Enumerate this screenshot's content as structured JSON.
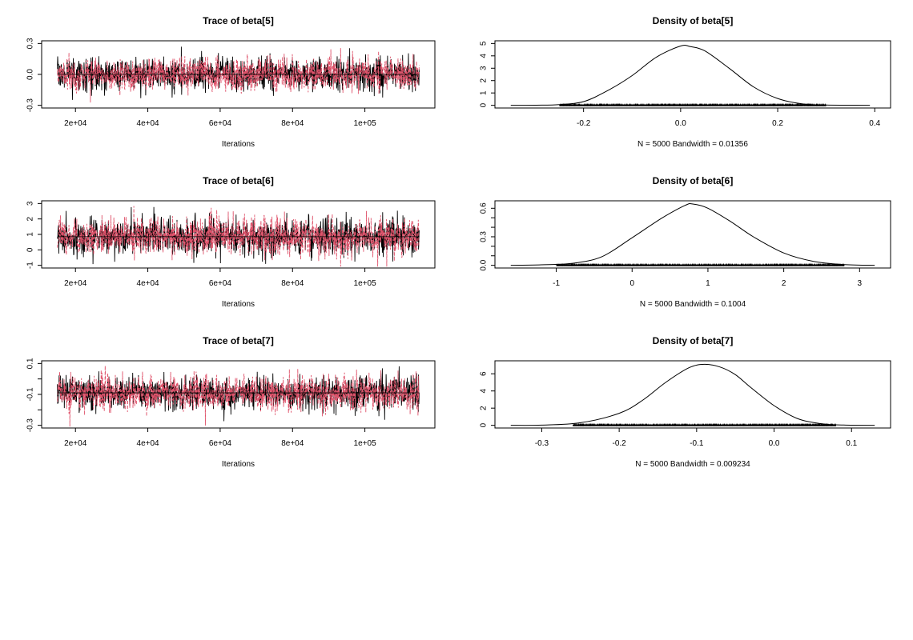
{
  "chart_data": [
    {
      "type": "line",
      "title": "Trace of beta[5]",
      "xlabel": "Iterations",
      "ylabel": "",
      "xlim": [
        15000,
        115000
      ],
      "ylim": [
        -0.3,
        0.3
      ],
      "x_ticks": [
        20000,
        40000,
        60000,
        80000,
        100000
      ],
      "x_tick_labels": [
        "2e+04",
        "4e+04",
        "6e+04",
        "8e+04",
        "1e+05"
      ],
      "y_ticks": [
        -0.3,
        0.0,
        0.3
      ],
      "y_tick_labels": [
        "-0.3",
        "0.0",
        "0.3"
      ],
      "series": [
        {
          "color": "#000000",
          "mean": 0.0,
          "sd": 0.08
        },
        {
          "color": "#DF536B",
          "mean": 0.0,
          "sd": 0.08
        }
      ],
      "n_iterations": 5000,
      "hline": 0.0
    },
    {
      "type": "line",
      "title": "Density of beta[5]",
      "xlabel": "N = 5000   Bandwidth = 0.01356",
      "ylabel": "",
      "xlim": [
        -0.35,
        0.4
      ],
      "ylim": [
        0,
        5
      ],
      "x_ticks": [
        -0.2,
        0.0,
        0.2,
        0.4
      ],
      "x_tick_labels": [
        "-0.2",
        "0.0",
        "0.2",
        "0.4"
      ],
      "y_ticks": [
        0,
        1,
        2,
        3,
        4,
        5
      ],
      "y_tick_labels": [
        "0",
        "1",
        "2",
        "3",
        "4",
        "5"
      ],
      "x": [
        -0.35,
        -0.3,
        -0.25,
        -0.2,
        -0.15,
        -0.1,
        -0.05,
        0.0,
        0.02,
        0.05,
        0.1,
        0.15,
        0.2,
        0.25,
        0.3,
        0.35,
        0.39
      ],
      "y": [
        0.0,
        0.01,
        0.06,
        0.3,
        1.2,
        2.4,
        3.9,
        4.8,
        4.75,
        4.4,
        3.0,
        1.5,
        0.55,
        0.12,
        0.02,
        0.01,
        0.0
      ],
      "rug_range": [
        -0.25,
        0.3
      ]
    },
    {
      "type": "line",
      "title": "Trace of beta[6]",
      "xlabel": "Iterations",
      "ylabel": "",
      "xlim": [
        15000,
        115000
      ],
      "ylim": [
        -1,
        3
      ],
      "x_ticks": [
        20000,
        40000,
        60000,
        80000,
        100000
      ],
      "x_tick_labels": [
        "2e+04",
        "4e+04",
        "6e+04",
        "8e+04",
        "1e+05"
      ],
      "y_ticks": [
        -1,
        0,
        1,
        2,
        3
      ],
      "y_tick_labels": [
        "-1",
        "0",
        "1",
        "2",
        "3"
      ],
      "series": [
        {
          "color": "#000000",
          "mean": 0.85,
          "sd": 0.6
        },
        {
          "color": "#DF536B",
          "mean": 0.85,
          "sd": 0.6
        }
      ],
      "n_iterations": 5000,
      "hline": 0.85
    },
    {
      "type": "line",
      "title": "Density of beta[6]",
      "xlabel": "N = 5000   Bandwidth = 0.1004",
      "ylabel": "",
      "xlim": [
        -1.6,
        3.2
      ],
      "ylim": [
        0,
        0.65
      ],
      "x_ticks": [
        -1,
        0,
        1,
        2,
        3
      ],
      "x_tick_labels": [
        "-1",
        "0",
        "1",
        "2",
        "3"
      ],
      "y_ticks": [
        0.0,
        0.1,
        0.2,
        0.3,
        0.4,
        0.5,
        0.6
      ],
      "y_tick_labels": [
        "0.0",
        "",
        "",
        "0.3",
        "",
        "",
        "0.6"
      ],
      "x": [
        -1.6,
        -1.2,
        -0.8,
        -0.4,
        0.0,
        0.4,
        0.7,
        0.8,
        1.0,
        1.3,
        1.6,
        2.0,
        2.4,
        2.8,
        3.2
      ],
      "y": [
        0.0,
        0.005,
        0.02,
        0.09,
        0.29,
        0.5,
        0.63,
        0.645,
        0.6,
        0.46,
        0.3,
        0.13,
        0.04,
        0.008,
        0.0
      ],
      "rug_range": [
        -1.0,
        2.8
      ]
    },
    {
      "type": "line",
      "title": "Trace of beta[7]",
      "xlabel": "Iterations",
      "ylabel": "",
      "xlim": [
        15000,
        115000
      ],
      "ylim": [
        -0.3,
        0.1
      ],
      "x_ticks": [
        20000,
        40000,
        60000,
        80000,
        100000
      ],
      "x_tick_labels": [
        "2e+04",
        "4e+04",
        "6e+04",
        "8e+04",
        "1e+05"
      ],
      "y_ticks": [
        -0.3,
        -0.2,
        -0.1,
        0.0,
        0.1
      ],
      "y_tick_labels": [
        "-0.3",
        "",
        "-0.1",
        "",
        "0.1"
      ],
      "series": [
        {
          "color": "#000000",
          "mean": -0.09,
          "sd": 0.055
        },
        {
          "color": "#DF536B",
          "mean": -0.09,
          "sd": 0.055
        }
      ],
      "n_iterations": 5000,
      "hline": -0.09
    },
    {
      "type": "line",
      "title": "Density of beta[7]",
      "xlabel": "N = 5000   Bandwidth = 0.009234",
      "ylabel": "",
      "xlim": [
        -0.34,
        0.13
      ],
      "ylim": [
        0,
        7.2
      ],
      "x_ticks": [
        -0.3,
        -0.2,
        -0.1,
        0.0,
        0.1
      ],
      "x_tick_labels": [
        "-0.3",
        "-0.2",
        "-0.1",
        "0.0",
        "0.1"
      ],
      "y_ticks": [
        0,
        2,
        4,
        6
      ],
      "y_tick_labels": [
        "0",
        "2",
        "4",
        "6"
      ],
      "x": [
        -0.34,
        -0.3,
        -0.25,
        -0.2,
        -0.17,
        -0.14,
        -0.11,
        -0.09,
        -0.07,
        -0.05,
        -0.03,
        0.0,
        0.03,
        0.06,
        0.09,
        0.13
      ],
      "y": [
        0.0,
        0.02,
        0.3,
        1.4,
        2.9,
        5.0,
        6.7,
        7.1,
        6.8,
        5.9,
        4.4,
        2.3,
        0.8,
        0.2,
        0.03,
        0.0
      ],
      "rug_range": [
        -0.26,
        0.08
      ]
    }
  ]
}
